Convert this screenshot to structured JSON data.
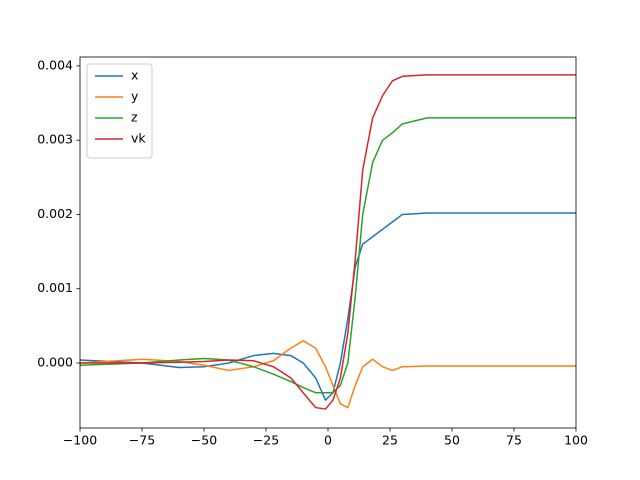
{
  "chart_data": {
    "type": "line",
    "x": [
      -100,
      -75,
      -60,
      -50,
      -40,
      -30,
      -22,
      -15,
      -10,
      -5,
      -1,
      2,
      5,
      8,
      11,
      14,
      18,
      22,
      26,
      30,
      40,
      100
    ],
    "series": [
      {
        "name": "x",
        "color": "#1f77b4",
        "values": [
          4e-05,
          0,
          -6e-05,
          -5e-05,
          0,
          0.0001,
          0.00013,
          0.0001,
          0,
          -0.0002,
          -0.0005,
          -0.0004,
          0,
          0.0006,
          0.0013,
          0.0016,
          0.0017,
          0.0018,
          0.0019,
          0.002,
          0.00202,
          0.00202
        ]
      },
      {
        "name": "y",
        "color": "#ff7f0e",
        "values": [
          0,
          5e-05,
          2e-05,
          -3e-05,
          -0.0001,
          -5e-05,
          3e-05,
          0.0002,
          0.0003,
          0.0002,
          -5e-05,
          -0.0003,
          -0.00055,
          -0.0006,
          -0.0003,
          -5e-05,
          5e-05,
          -5e-05,
          -0.0001,
          -5e-05,
          -4e-05,
          -4e-05
        ]
      },
      {
        "name": "z",
        "color": "#2ca02c",
        "values": [
          -3e-05,
          0,
          4e-05,
          6e-05,
          4e-05,
          -5e-05,
          -0.00015,
          -0.00025,
          -0.00033,
          -0.0004,
          -0.0004,
          -0.0004,
          -0.0003,
          0,
          0.0009,
          0.002,
          0.0027,
          0.003,
          0.0031,
          0.00322,
          0.0033,
          0.0033
        ]
      },
      {
        "name": "vk",
        "color": "#d62728",
        "values": [
          0,
          0,
          1e-05,
          2e-05,
          4e-05,
          3e-05,
          -5e-05,
          -0.0002,
          -0.0004,
          -0.0006,
          -0.00062,
          -0.0005,
          -0.0002,
          0.0004,
          0.0014,
          0.0026,
          0.0033,
          0.0036,
          0.0038,
          0.00386,
          0.00388,
          0.00388
        ]
      }
    ],
    "xlim": [
      -100,
      100
    ],
    "xticks": [
      {
        "value": -100,
        "label": "−100"
      },
      {
        "value": -75,
        "label": "−75"
      },
      {
        "value": -50,
        "label": "−50"
      },
      {
        "value": -25,
        "label": "−25"
      },
      0,
      25,
      50,
      75,
      100
    ],
    "ylim": [
      -0.000875,
      0.00412
    ],
    "yticks": [
      {
        "value": 0,
        "label": "0.000"
      },
      {
        "value": 0.001,
        "label": "0.001"
      },
      {
        "value": 0.002,
        "label": "0.002"
      },
      {
        "value": 0.003,
        "label": "0.003"
      },
      {
        "value": 0.004,
        "label": "0.004"
      }
    ],
    "legend": "upper left"
  }
}
